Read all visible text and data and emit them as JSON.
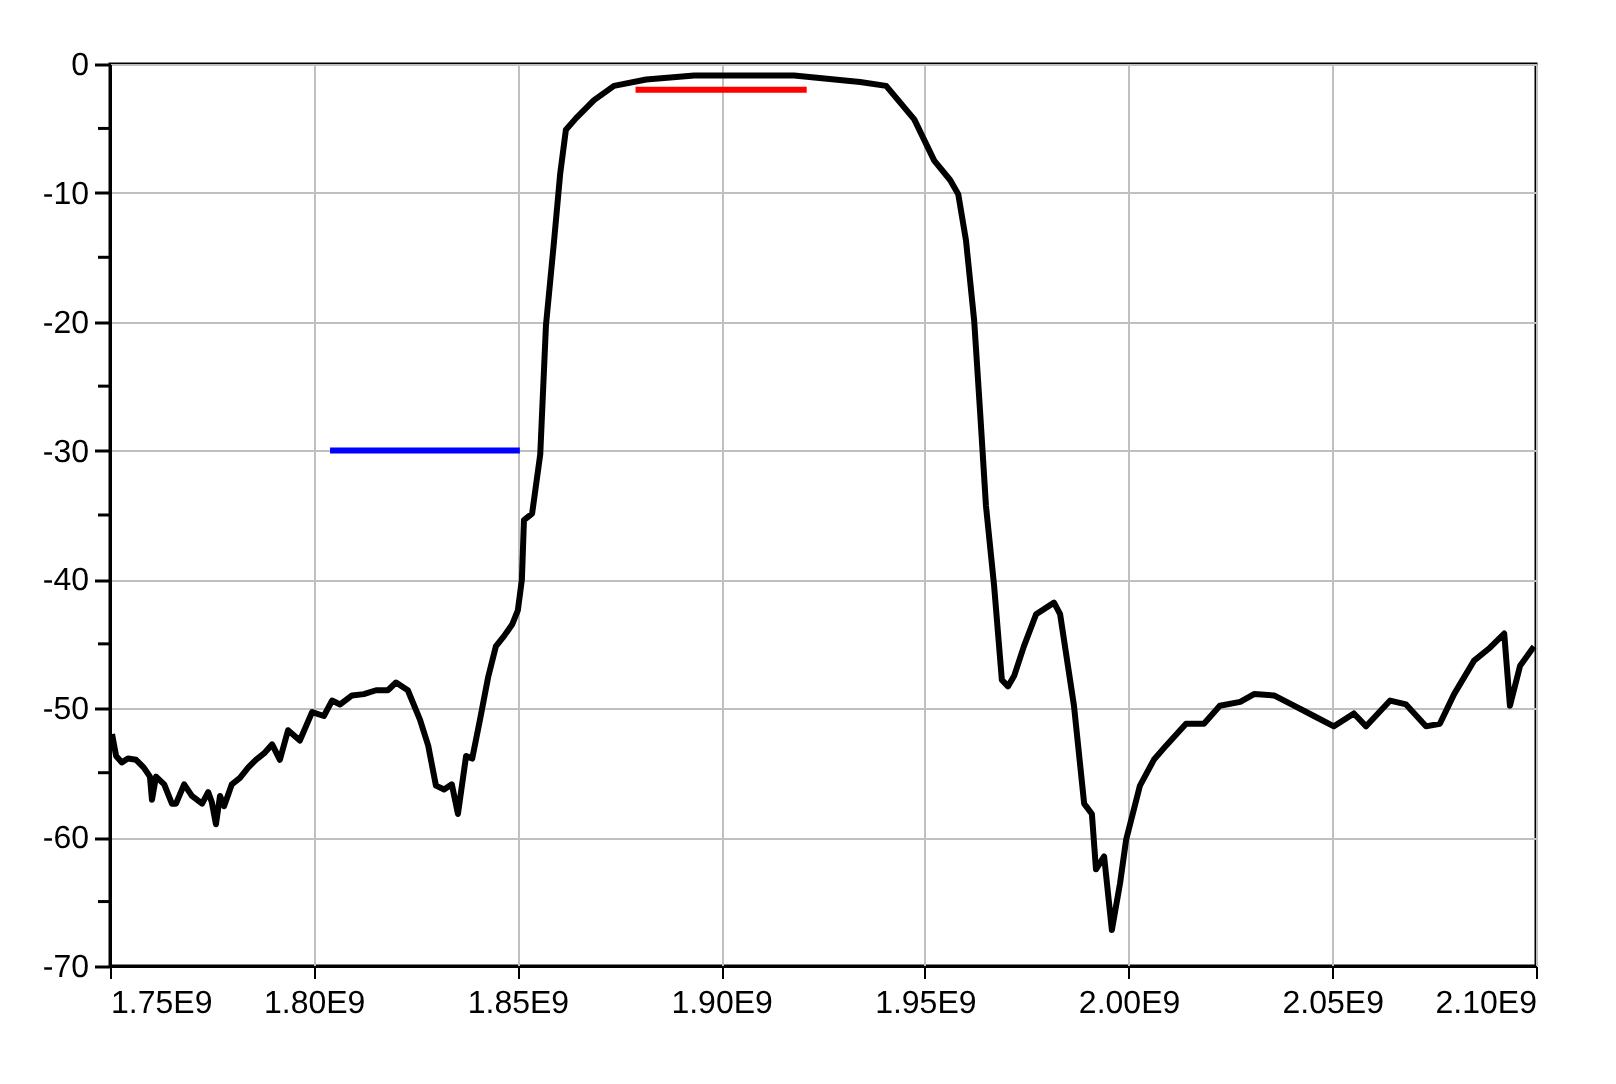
{
  "chart_data": {
    "type": "line",
    "xlim": [
      1750000000.0,
      2100000000.0
    ],
    "ylim": [
      -70,
      0
    ],
    "xticks": [
      {
        "value": 1750000000.0,
        "label": "1.75E9"
      },
      {
        "value": 1800000000.0,
        "label": "1.80E9"
      },
      {
        "value": 1850000000.0,
        "label": "1.85E9"
      },
      {
        "value": 1900000000.0,
        "label": "1.90E9"
      },
      {
        "value": 1950000000.0,
        "label": "1.95E9"
      },
      {
        "value": 2000000000.0,
        "label": "2.00E9"
      },
      {
        "value": 2050000000.0,
        "label": "2.05E9"
      },
      {
        "value": 2100000000.0,
        "label": "2.10E9"
      }
    ],
    "yticks": [
      0,
      {
        "value": -5,
        "label": null
      },
      -10,
      {
        "value": -15,
        "label": null
      },
      -20,
      {
        "value": -25,
        "label": null
      },
      -30,
      {
        "value": -35,
        "label": null
      },
      -40,
      {
        "value": -45,
        "label": null
      },
      -50,
      {
        "value": -55,
        "label": null
      },
      -60,
      {
        "value": -65,
        "label": null
      },
      -70
    ],
    "grid": true,
    "marker": "none",
    "line_style": "solid",
    "series": [
      {
        "color": "#000000",
        "x": [
          1750500000.0,
          1751500000.0,
          1752900000.0,
          1754400000.0,
          1756400000.0,
          1758300000.0,
          1759800000.0,
          1760300000.0,
          1761300000.0,
          1763300000.0,
          1765200000.0,
          1766200000.0,
          1768200000.0,
          1770100000.0,
          1772600000.0,
          1774100000.0,
          1775000000.0,
          1776000000.0,
          1777000000.0,
          1778000000.0,
          1779900000.0,
          1781900000.0,
          1783900000.0,
          1785800000.0,
          1787800000.0,
          1789800000.0,
          1791700000.0,
          1793700000.0,
          1796600000.0,
          1799600000.0,
          1802500000.0,
          1804500000.0,
          1806500000.0,
          1809400000.0,
          1812300000.0,
          1815300000.0,
          1818200000.0,
          1820200000.0,
          1823100000.0,
          1826100000.0,
          1828100000.0,
          1830000000.0,
          1832000000.0,
          1833900000.0,
          1835400000.0,
          1837400000.0,
          1838900000.0,
          1840800000.0,
          1842800000.0,
          1844700000.0,
          1846700000.0,
          1848700000.0,
          1850100000.0,
          1851100000.0,
          1851600000.0,
          1853600000.0,
          1855600000.0,
          1857000000.0,
          1859000000.0,
          1860500000.0,
          1861900000.0,
          1864400000.0,
          1868800000.0,
          1873700000.0,
          1881600000.0,
          1893400000.0,
          1904700000.0,
          1917900000.0,
          1934100000.0,
          1940500000.0,
          1947400000.0,
          1952300000.0,
          1956200000.0,
          1958200000.0,
          1960100000.0,
          1962100000.0,
          1963600000.0,
          1965000000.0,
          1967000000.0,
          1968900000.0,
          1970400000.0,
          1971900000.0,
          1974300000.0,
          1977300000.0,
          1981700000.0,
          1983200000.0,
          1986600000.0,
          1989100000.0,
          1991000000.0,
          1992000000.0,
          1994000000.0,
          1995900000.0,
          1997900000.0,
          1999400000.0,
          2002800000.0,
          2006200000.0,
          2009200000.0,
          2014100000.0,
          2018500000.0,
          2022400000.0,
          2027400000.0,
          2030800000.0,
          2035700000.0,
          2040600000.0,
          2045500000.0,
          2050400000.0,
          2055300000.0,
          2058300000.0,
          2064200000.0,
          2068100000.0,
          2073000000.0,
          2076400000.0,
          2079900000.0,
          2084800000.0,
          2088700000.0,
          2092200000.0,
          2093600000.0,
          2096100000.0,
          2099500000.0
        ],
        "values": [
          -52.0,
          -53.7,
          -54.2,
          -53.9,
          -54.0,
          -54.6,
          -55.3,
          -57.1,
          -55.3,
          -55.9,
          -57.4,
          -57.4,
          -55.9,
          -56.8,
          -57.4,
          -56.5,
          -57.3,
          -59.0,
          -56.8,
          -57.6,
          -55.9,
          -55.4,
          -54.6,
          -54.0,
          -53.5,
          -52.8,
          -54.0,
          -51.7,
          -52.5,
          -50.3,
          -50.6,
          -49.4,
          -49.7,
          -49.0,
          -48.9,
          -48.6,
          -48.6,
          -48.0,
          -48.6,
          -50.9,
          -52.9,
          -56.0,
          -56.3,
          -55.9,
          -58.2,
          -53.7,
          -53.9,
          -50.9,
          -47.6,
          -45.2,
          -44.4,
          -43.5,
          -42.4,
          -40.0,
          -35.4,
          -34.9,
          -30.3,
          -20.3,
          -13.7,
          -8.5,
          -5.1,
          -4.2,
          -2.8,
          -1.7,
          -1.2,
          -0.9,
          -0.9,
          -0.9,
          -1.4,
          -1.7,
          -4.3,
          -7.5,
          -9.0,
          -10.1,
          -13.7,
          -19.9,
          -27.2,
          -34.3,
          -40.5,
          -47.8,
          -48.3,
          -47.5,
          -45.2,
          -42.7,
          -41.8,
          -42.7,
          -49.8,
          -57.4,
          -58.2,
          -62.5,
          -61.5,
          -67.2,
          -63.6,
          -60.2,
          -56.0,
          -54.0,
          -52.9,
          -51.2,
          -51.2,
          -49.8,
          -49.5,
          -48.9,
          -49.0,
          -49.8,
          -50.6,
          -51.4,
          -50.4,
          -51.4,
          -49.4,
          -49.7,
          -51.4,
          -51.2,
          -48.9,
          -46.3,
          -45.3,
          -44.2,
          -49.8,
          -46.7,
          -45.2
        ]
      },
      {
        "color": "#0000ff",
        "x": [
          1804000000.0,
          1850600000.0
        ],
        "values": [
          -30,
          -30
        ]
      },
      {
        "color": "#ff0000",
        "x": [
          1879000000.0,
          1921000000.0
        ],
        "values": [
          -2,
          -2
        ]
      }
    ]
  }
}
